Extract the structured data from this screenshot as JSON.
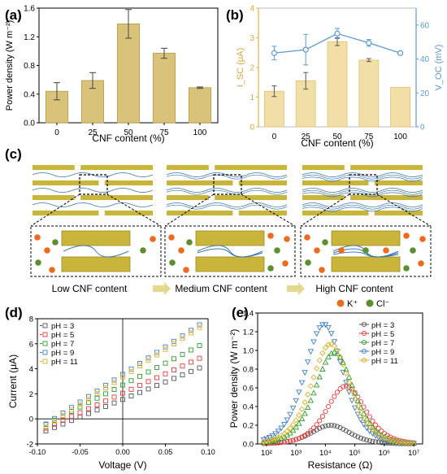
{
  "panel_labels": {
    "a": "(a)",
    "b": "(b)",
    "c": "(c)",
    "d": "(d)",
    "e": "(e)"
  },
  "colors": {
    "bar": "#d9c37a",
    "bar_edge": "#b59b43",
    "voc_line": "#5b9bd5",
    "membrane": "#c9b53a",
    "membrane_edge": "#9e8c1f",
    "fiber": "#3a78b8",
    "k_ion": "#ee6a1f",
    "cl_ion": "#5c8f2e",
    "arrow": "#e7d88f"
  },
  "panel_c": {
    "labels": [
      "Low CNF content",
      "Medium CNF content",
      "High CNF content"
    ],
    "legend": {
      "k": "K⁺",
      "cl": "Cl⁻"
    }
  },
  "chart_data": [
    {
      "id": "a",
      "type": "bar",
      "title": "",
      "xlabel": "CNF content (%)",
      "ylabel": "Power density (W m⁻²)",
      "categories": [
        "0",
        "25",
        "50",
        "75",
        "100"
      ],
      "values": [
        0.44,
        0.59,
        1.38,
        0.97,
        0.49
      ],
      "errors": [
        0.12,
        0.11,
        0.2,
        0.07,
        0.01
      ],
      "ylim": [
        0,
        1.6
      ],
      "yticks": [
        "0.0",
        "0.4",
        "0.8",
        "1.2",
        "1.6"
      ]
    },
    {
      "id": "b",
      "type": "bar",
      "title": "",
      "xlabel": "CNF content (%)",
      "ylabel_left": "I_SC (μA)",
      "ylabel_right": "V_OC (mV)",
      "categories": [
        "0",
        "25",
        "50",
        "75",
        "100"
      ],
      "series": [
        {
          "axis": "left",
          "kind": "bar",
          "values": [
            1.2,
            1.55,
            2.87,
            2.25,
            1.33
          ],
          "errors": [
            0.18,
            0.28,
            0.13,
            0.05,
            0.0
          ]
        },
        {
          "axis": "right",
          "kind": "line",
          "values": [
            43.5,
            45.5,
            55,
            49.5,
            43.5
          ],
          "errors": [
            4,
            9,
            3,
            2,
            0
          ]
        }
      ],
      "ylim_left": [
        0,
        4
      ],
      "yticks_left": [
        "0",
        "1",
        "2",
        "3",
        "4"
      ],
      "ylim_right": [
        0,
        70
      ],
      "yticks_right": [
        "0",
        "20",
        "40",
        "60"
      ]
    },
    {
      "id": "d",
      "type": "line",
      "title": "",
      "xlabel": "Voltage (V)",
      "ylabel": "Current (μA)",
      "xlim": [
        -0.1,
        0.1
      ],
      "ylim": [
        -2,
        8
      ],
      "xticks": [
        "-0.10",
        "-0.05",
        "0.00",
        "0.05",
        "0.10"
      ],
      "yticks": [
        "-2",
        "0",
        "2",
        "4",
        "6",
        "8"
      ],
      "legend": "top-left",
      "series": [
        {
          "name": "pH = 3",
          "color": "#555555",
          "intercept": 1.55,
          "slope": 28
        },
        {
          "name": "pH = 5",
          "color": "#ee3a3a",
          "intercept": 2.05,
          "slope": 31
        },
        {
          "name": "pH = 7",
          "color": "#2ca02c",
          "intercept": 2.7,
          "slope": 35
        },
        {
          "name": "pH = 9",
          "color": "#3f7fd0",
          "intercept": 3.55,
          "slope": 44
        },
        {
          "name": "pH = 11",
          "color": "#e0b020",
          "intercept": 3.35,
          "slope": 44
        }
      ]
    },
    {
      "id": "e",
      "type": "scatter",
      "title": "",
      "xlabel": "Resistance (Ω)",
      "ylabel": "Power density (W m⁻²)",
      "x_scale": "log",
      "xlim": [
        50,
        20000000
      ],
      "ylim": [
        0,
        1.4
      ],
      "xticks": [
        "10²",
        "10³",
        "10⁴",
        "10⁵",
        "10⁶",
        "10⁷"
      ],
      "yticks": [
        "0.0",
        "0.2",
        "0.4",
        "0.6",
        "0.8",
        "1.0",
        "1.2",
        "1.4"
      ],
      "legend": "top-right",
      "series": [
        {
          "name": "pH = 3",
          "color": "#555555",
          "peak_x": 15000,
          "peak_y": 0.2
        },
        {
          "name": "pH = 5",
          "color": "#ee3a3a",
          "peak_x": 50000,
          "peak_y": 0.62
        },
        {
          "name": "pH = 7",
          "color": "#2ca02c",
          "peak_x": 20000,
          "peak_y": 0.98
        },
        {
          "name": "pH = 9",
          "color": "#3f7fd0",
          "peak_x": 9000,
          "peak_y": 1.28
        },
        {
          "name": "pH = 11",
          "color": "#e0b020",
          "peak_x": 15000,
          "peak_y": 1.07
        }
      ]
    }
  ]
}
